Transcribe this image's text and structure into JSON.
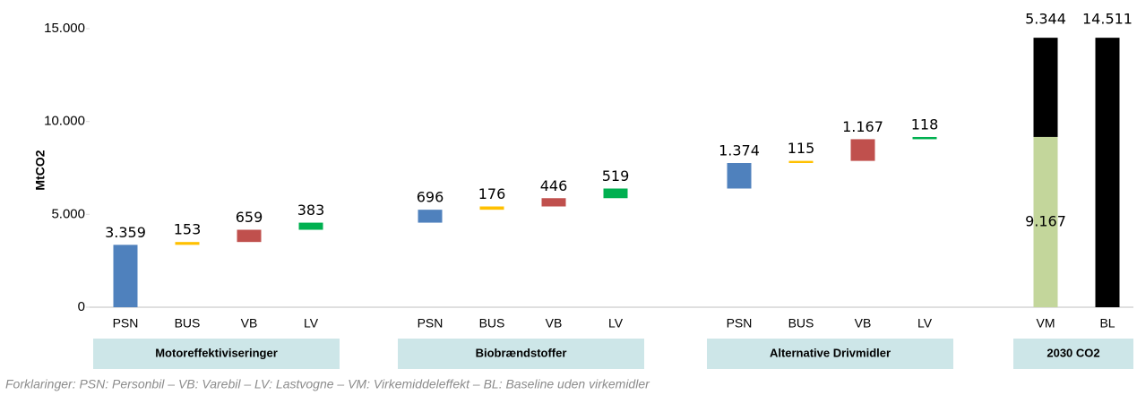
{
  "chart_data": {
    "type": "waterfall",
    "ylabel": "MtCO2",
    "ylim": [
      0,
      15000
    ],
    "yticks": [
      0,
      {
        "value": 5000,
        "label": "5.000"
      },
      {
        "value": 10000,
        "label": "10.000"
      },
      {
        "value": 15000,
        "label": "15.000"
      }
    ],
    "groups": [
      {
        "label": "Motoreffektiviseringer",
        "categories": [
          "PSN",
          "BUS",
          "VB",
          "LV"
        ],
        "values": [
          3359,
          153,
          659,
          383
        ],
        "value_labels": [
          "3.359",
          "153",
          "659",
          "383"
        ],
        "colors": [
          "#4f81bd",
          "#ffc000",
          "#c0504d",
          "#00b050"
        ]
      },
      {
        "label": "Biobrændstoffer",
        "categories": [
          "PSN",
          "BUS",
          "VB",
          "LV"
        ],
        "values": [
          696,
          176,
          446,
          519
        ],
        "value_labels": [
          "696",
          "176",
          "446",
          "519"
        ],
        "colors": [
          "#4f81bd",
          "#ffc000",
          "#c0504d",
          "#00b050"
        ]
      },
      {
        "label": "Alternative Drivmidler",
        "categories": [
          "PSN",
          "BUS",
          "VB",
          "LV"
        ],
        "values": [
          1374,
          115,
          1167,
          118
        ],
        "value_labels": [
          "1.374",
          "115",
          "1.167",
          "118"
        ],
        "colors": [
          "#4f81bd",
          "#ffc000",
          "#c0504d",
          "#00b050"
        ]
      },
      {
        "label": "2030 CO2",
        "categories": [
          "VM",
          "BL"
        ],
        "series": [
          {
            "color": "#c3d69b",
            "values": [
              9167,
              null
            ],
            "value_labels": [
              "9.167",
              null
            ]
          },
          {
            "color": "#000000",
            "values": [
              5344,
              14511
            ],
            "value_labels": [
              "5.344",
              "14.511"
            ]
          }
        ]
      }
    ],
    "note": "Forklaringer: PSN: Personbil – VB: Varebil – LV: Lastvogne – VM: Virkemiddeleffekt – BL: Baseline uden virkemidler"
  }
}
